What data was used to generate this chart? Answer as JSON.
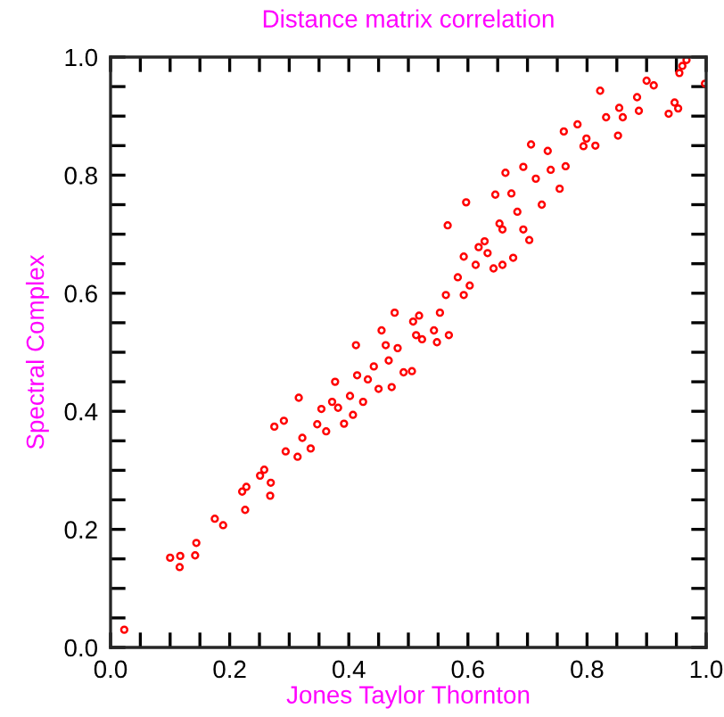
{
  "chart_data": {
    "type": "scatter",
    "title": "Distance matrix correlation",
    "xlabel": "Jones Taylor Thornton",
    "ylabel": "Spectral Complex",
    "xlim": [
      0.0,
      1.0
    ],
    "ylim": [
      0.0,
      1.0
    ],
    "xticks": [
      {
        "value": 0,
        "label": "0.0"
      },
      {
        "value": 0.05,
        "label": null
      },
      {
        "value": 0.1,
        "label": null
      },
      {
        "value": 0.15,
        "label": null
      },
      0.2,
      {
        "value": 0.25,
        "label": null
      },
      {
        "value": 0.3,
        "label": null
      },
      {
        "value": 0.35,
        "label": null
      },
      0.4,
      {
        "value": 0.45,
        "label": null
      },
      {
        "value": 0.5,
        "label": null
      },
      {
        "value": 0.55,
        "label": null
      },
      0.6,
      {
        "value": 0.65,
        "label": null
      },
      {
        "value": 0.7,
        "label": null
      },
      {
        "value": 0.75,
        "label": null
      },
      0.8,
      {
        "value": 0.85,
        "label": null
      },
      {
        "value": 0.9,
        "label": null
      },
      {
        "value": 0.95,
        "label": null
      },
      {
        "value": 1,
        "label": "1.0"
      }
    ],
    "yticks": [
      {
        "value": 0,
        "label": "0.0"
      },
      {
        "value": 0.05,
        "label": null
      },
      {
        "value": 0.1,
        "label": null
      },
      {
        "value": 0.15,
        "label": null
      },
      0.2,
      {
        "value": 0.25,
        "label": null
      },
      {
        "value": 0.3,
        "label": null
      },
      {
        "value": 0.35,
        "label": null
      },
      0.4,
      {
        "value": 0.45,
        "label": null
      },
      {
        "value": 0.5,
        "label": null
      },
      {
        "value": 0.55,
        "label": null
      },
      0.6,
      {
        "value": 0.65,
        "label": null
      },
      {
        "value": 0.7,
        "label": null
      },
      {
        "value": 0.75,
        "label": null
      },
      0.8,
      {
        "value": 0.85,
        "label": null
      },
      {
        "value": 0.9,
        "label": null
      },
      {
        "value": 0.95,
        "label": null
      },
      {
        "value": 1,
        "label": "1.0"
      }
    ],
    "grid": false,
    "marker": "circle",
    "series": [
      {
        "color": "#ff0000",
        "x": [
          0.023,
          0.1,
          0.117,
          0.116,
          0.142,
          0.144,
          0.175,
          0.189,
          0.226,
          0.221,
          0.228,
          0.251,
          0.258,
          0.269,
          0.268,
          0.275,
          0.291,
          0.294,
          0.316,
          0.314,
          0.322,
          0.336,
          0.347,
          0.354,
          0.362,
          0.372,
          0.377,
          0.392,
          0.407,
          0.402,
          0.424,
          0.412,
          0.414,
          0.432,
          0.45,
          0.455,
          0.467,
          0.472,
          0.477,
          0.482,
          0.492,
          0.506,
          0.513,
          0.518,
          0.523,
          0.543,
          0.548,
          0.568,
          0.553,
          0.563,
          0.583,
          0.593,
          0.566,
          0.597,
          0.603,
          0.613,
          0.618,
          0.633,
          0.643,
          0.658,
          0.676,
          0.646,
          0.653,
          0.658,
          0.673,
          0.683,
          0.693,
          0.703,
          0.706,
          0.714,
          0.663,
          0.724,
          0.734,
          0.739,
          0.754,
          0.764,
          0.761,
          0.784,
          0.794,
          0.799,
          0.814,
          0.822,
          0.832,
          0.852,
          0.854,
          0.86,
          0.884,
          0.887,
          0.9,
          0.912,
          0.937,
          0.947,
          0.953,
          0.955,
          0.96,
          0.967,
          0.998,
          0.382,
          0.442,
          0.462,
          0.508,
          0.593,
          0.628,
          0.693
        ],
        "values": [
          0.03,
          0.152,
          0.155,
          0.136,
          0.156,
          0.177,
          0.218,
          0.207,
          0.233,
          0.264,
          0.272,
          0.291,
          0.301,
          0.279,
          0.257,
          0.374,
          0.384,
          0.332,
          0.423,
          0.323,
          0.355,
          0.337,
          0.378,
          0.404,
          0.366,
          0.416,
          0.45,
          0.379,
          0.394,
          0.426,
          0.416,
          0.512,
          0.461,
          0.454,
          0.438,
          0.537,
          0.486,
          0.441,
          0.567,
          0.507,
          0.466,
          0.468,
          0.529,
          0.562,
          0.522,
          0.537,
          0.517,
          0.529,
          0.567,
          0.597,
          0.627,
          0.597,
          0.715,
          0.754,
          0.613,
          0.648,
          0.678,
          0.668,
          0.642,
          0.648,
          0.66,
          0.767,
          0.718,
          0.708,
          0.769,
          0.738,
          0.708,
          0.69,
          0.852,
          0.794,
          0.804,
          0.75,
          0.841,
          0.809,
          0.777,
          0.815,
          0.874,
          0.886,
          0.849,
          0.862,
          0.85,
          0.943,
          0.898,
          0.867,
          0.914,
          0.898,
          0.932,
          0.909,
          0.96,
          0.952,
          0.904,
          0.923,
          0.913,
          0.973,
          0.985,
          0.995,
          0.955,
          0.406,
          0.476,
          0.512,
          0.552,
          0.662,
          0.688,
          0.814
        ]
      }
    ]
  }
}
